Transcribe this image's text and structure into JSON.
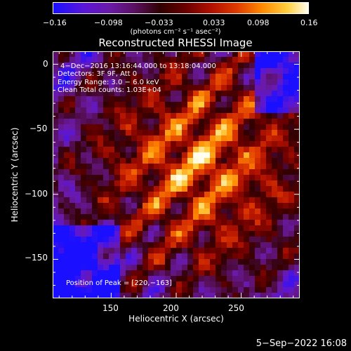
{
  "colorbar": {
    "ticks": [
      "−0.16",
      "−0.098",
      "−0.033",
      "0.033",
      "0.098",
      "0.16"
    ],
    "unit_label": "(photons cm⁻² s⁻¹ asec⁻²)",
    "range": [
      -0.16,
      0.16
    ]
  },
  "chart_data": {
    "type": "heatmap",
    "title": "Reconstructed RHESSI Image",
    "xlabel": "Heliocentric X (arcsec)",
    "ylabel": "Heliocentric Y (arcsec)",
    "xlim": [
      105,
      295
    ],
    "ylim": [
      -180,
      10
    ],
    "x_ticks": [
      "150",
      "200",
      "250"
    ],
    "y_ticks": [
      "0",
      "−50",
      "−100",
      "−150"
    ],
    "peak": [
      220,
      -163
    ],
    "annotations": [
      "4−Dec−2016 13:16:44.000 to 13:18:04.000",
      "Detectors: 3F 9F, Att 0",
      "Energy Range: 3.0 − 6.0 keV",
      "Clean     Total counts: 1.03E+04",
      "Position of Peak = [220,−163]"
    ]
  },
  "footer": {
    "timestamp": "5−Sep−2022 16:08"
  }
}
